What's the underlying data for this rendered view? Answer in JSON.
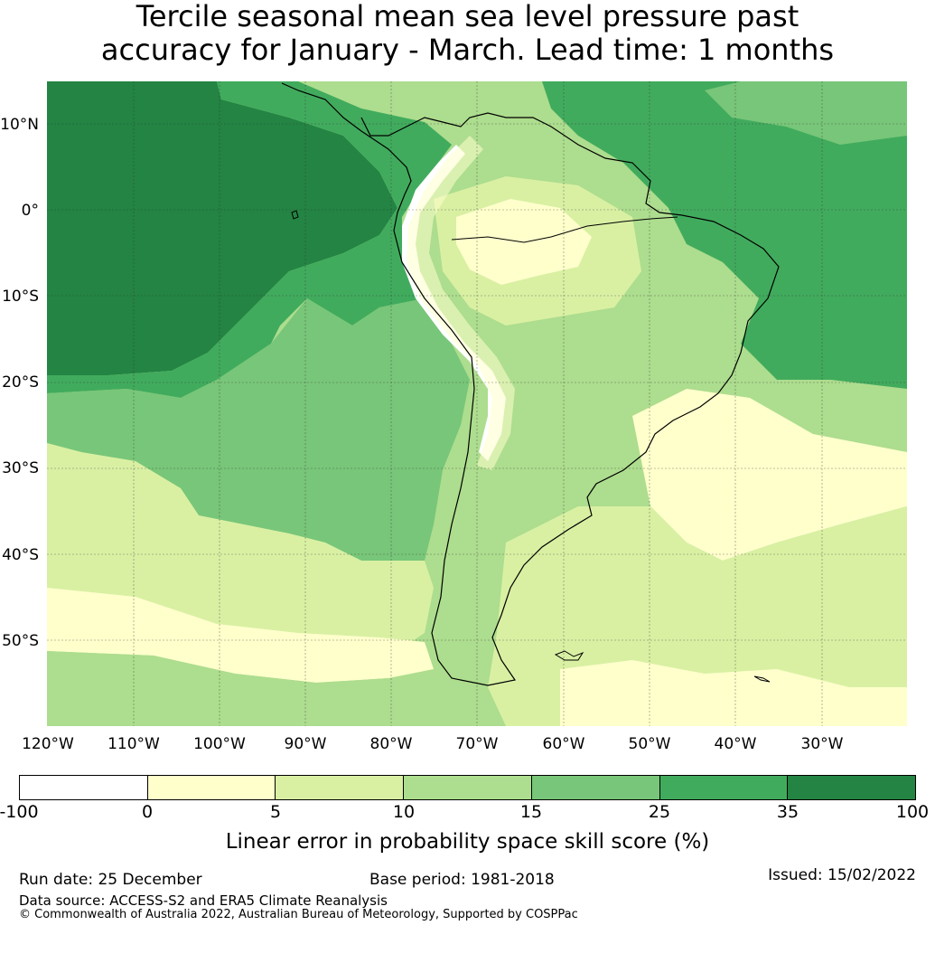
{
  "title_line1": "Tercile seasonal mean sea level pressure past",
  "title_line2": "accuracy for January - March. Lead time: 1 months",
  "map": {
    "lat_labels": [
      "10°N",
      "0°",
      "10°S",
      "20°S",
      "30°S",
      "40°S",
      "50°S"
    ],
    "lon_labels": [
      "120°W",
      "110°W",
      "100°W",
      "90°W",
      "80°W",
      "70°W",
      "60°W",
      "50°W",
      "40°W",
      "30°W"
    ]
  },
  "colorbar": {
    "bins": [
      {
        "from": -100,
        "to": 0,
        "color": "#ffffff"
      },
      {
        "from": 0,
        "to": 5,
        "color": "#ffffcc"
      },
      {
        "from": 5,
        "to": 10,
        "color": "#d9f0a3"
      },
      {
        "from": 10,
        "to": 15,
        "color": "#addd8e"
      },
      {
        "from": 15,
        "to": 25,
        "color": "#78c679"
      },
      {
        "from": 25,
        "to": 35,
        "color": "#41ab5d"
      },
      {
        "from": 35,
        "to": 100,
        "color": "#238443"
      }
    ],
    "ticks": [
      "-100",
      "0",
      "5",
      "10",
      "15",
      "25",
      "35",
      "100"
    ],
    "label": "Linear error in probability space skill score (%)"
  },
  "footer": {
    "run_date": "Run date: 25 December",
    "base_period": "Base period: 1981-2018",
    "issued": "Issued: 15/02/2022",
    "data_source": "Data source: ACCESS-S2 and ERA5 Climate Reanalysis",
    "copyright": "© Commonwealth of Australia 2022, Australian Bureau of Meteorology, Supported by COSPPac"
  }
}
